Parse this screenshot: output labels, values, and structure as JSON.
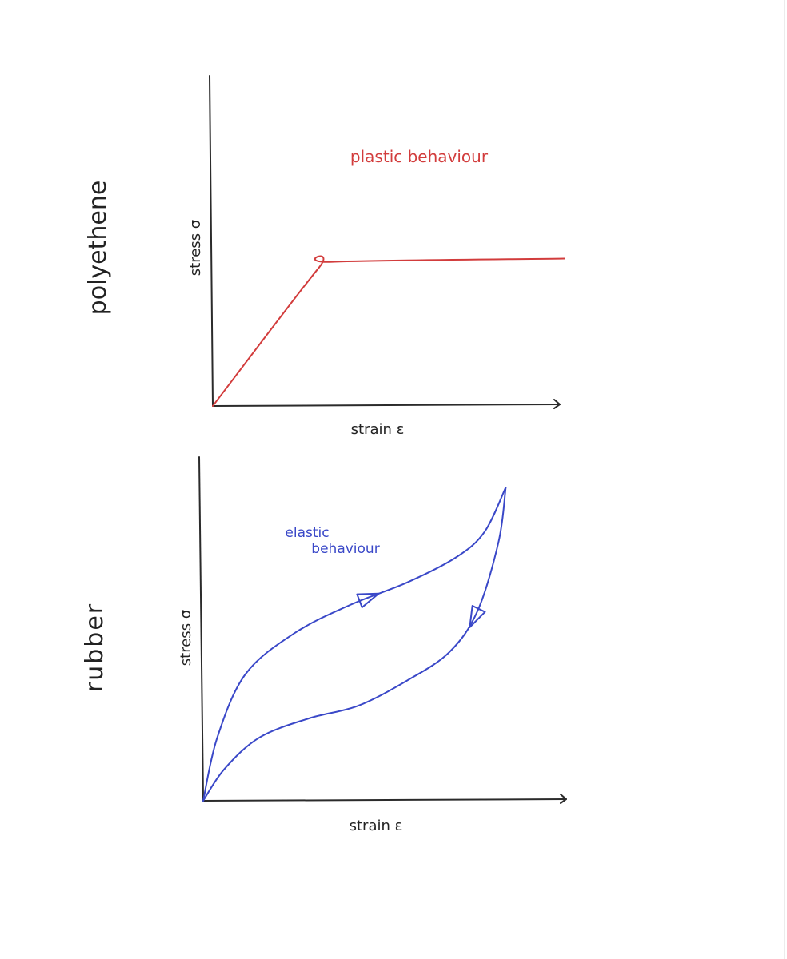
{
  "chart_data": [
    {
      "type": "line",
      "material_label": "polyethene",
      "annotation": "plastic behaviour",
      "xlabel": "strain ε",
      "ylabel": "stress σ",
      "color": "#d23c3c",
      "series": [
        {
          "x": [
            0,
            0.3,
            0.34,
            1.0
          ],
          "y": [
            0,
            0.42,
            0.44,
            0.45
          ]
        }
      ],
      "xlim": [
        0,
        1
      ],
      "ylim": [
        0,
        1
      ]
    },
    {
      "type": "line",
      "material_label": "rubber",
      "annotation": [
        "elastic",
        "behaviour"
      ],
      "xlabel": "strain ε",
      "ylabel": "stress σ",
      "color": "#3a48c8",
      "series": [
        {
          "x": [
            0,
            0.04,
            0.12,
            0.26,
            0.42,
            0.58,
            0.72,
            0.8,
            0.86
          ],
          "y": [
            0,
            0.2,
            0.4,
            0.53,
            0.62,
            0.69,
            0.77,
            0.85,
            0.99
          ]
        },
        {
          "x": [
            0.86,
            0.84,
            0.78,
            0.7,
            0.58,
            0.44,
            0.3,
            0.16,
            0.06,
            0
          ],
          "y": [
            0.99,
            0.82,
            0.6,
            0.47,
            0.38,
            0.3,
            0.26,
            0.2,
            0.1,
            0
          ]
        }
      ],
      "xlim": [
        0,
        1
      ],
      "ylim": [
        0,
        1
      ]
    }
  ]
}
